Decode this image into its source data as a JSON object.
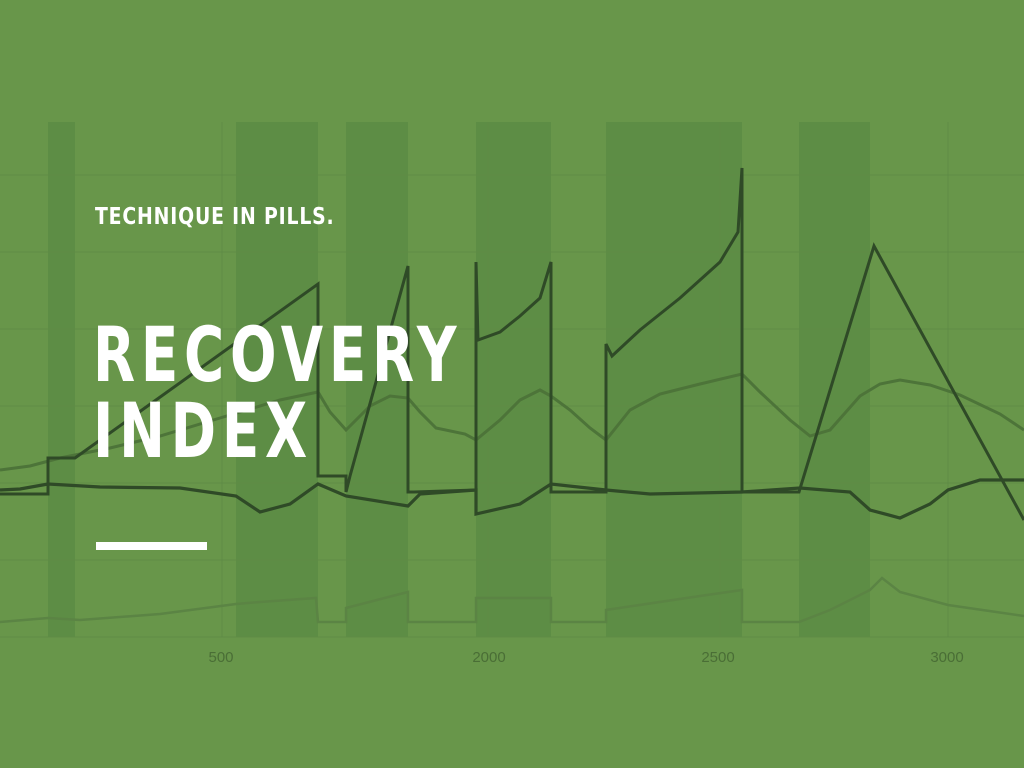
{
  "header": {
    "kicker": "TECHNIQUE IN PILLS.",
    "title_line1": "RECOVERY",
    "title_line2": "INDEX"
  },
  "colors": {
    "background": "#68964a",
    "band": "#5a8a44",
    "line_dark": "#2f4a27",
    "line_mid": "#4d7439",
    "line_light": "#5b8444",
    "text": "#ffffff"
  },
  "chart_data": {
    "type": "line",
    "title": "",
    "xlabel": "",
    "ylabel": "",
    "x_ticks": [
      "500",
      "2000",
      "2500",
      "3000"
    ],
    "grid": true,
    "legend": "none",
    "series": [
      {
        "values": []
      },
      {
        "values": []
      },
      {
        "values": []
      },
      {
        "values": []
      }
    ]
  }
}
